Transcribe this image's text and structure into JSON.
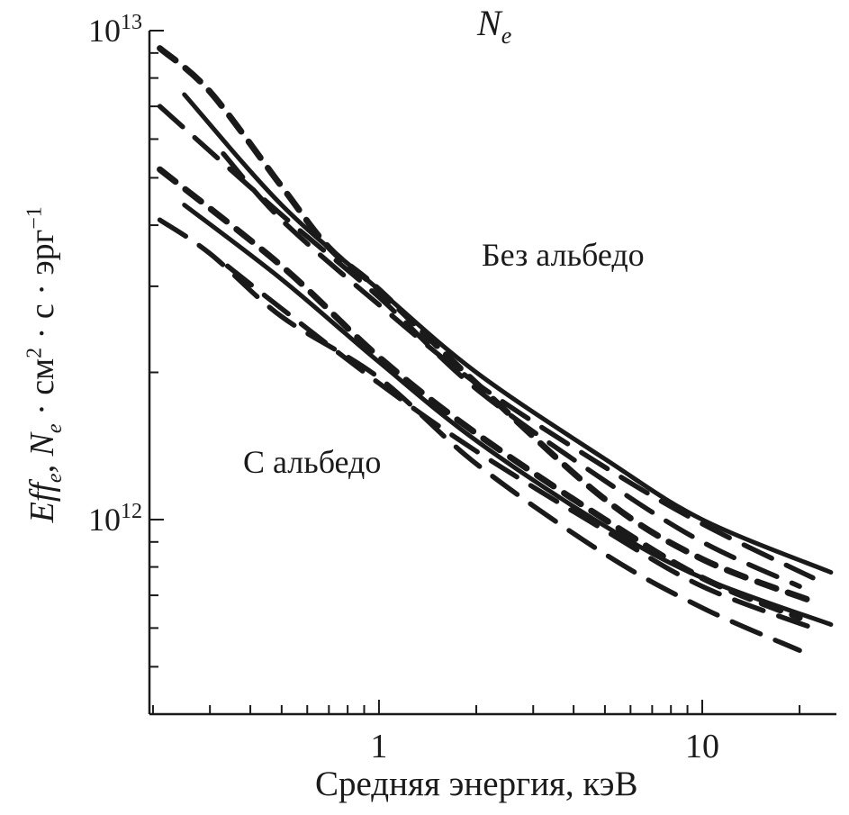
{
  "chart_data": {
    "type": "line",
    "title": "N_e",
    "xlabel": "Средняя энергия, кэВ",
    "ylabel": "Eff_e, N_e · см² · с · эрг⁻¹",
    "xscale": "log",
    "yscale": "log",
    "xlim": [
      0.195,
      26
    ],
    "ylim": [
      400000000000.0,
      10000000000000.0
    ],
    "grid": false,
    "x_tick_labels": [
      {
        "value": 1,
        "label": "1"
      },
      {
        "value": 10,
        "label": "10"
      }
    ],
    "y_tick_labels": [
      {
        "value": 10000000000000.0,
        "base": "10",
        "exp": "13"
      },
      {
        "value": 1000000000000.0,
        "base": "10",
        "exp": "12"
      }
    ],
    "annotations": [
      {
        "text": "Без альбедо",
        "x": 2.1,
        "y": 3300000000000.0
      },
      {
        "text": "С альбедо",
        "x": 0.55,
        "y": 1400000000000.0
      }
    ],
    "series": [
      {
        "group": "Без альбедо",
        "style": "dashed",
        "x": [
          0.21,
          0.3,
          0.5,
          0.7,
          1,
          2,
          5,
          10,
          22
        ],
        "y": [
          9200000000000.0,
          7500000000000.0,
          4800000000000.0,
          3600000000000.0,
          2950000000000.0,
          1900000000000.0,
          1100000000000.0,
          830000000000.0,
          680000000000.0
        ]
      },
      {
        "group": "Без альбедо",
        "style": "solid",
        "x": [
          0.25,
          0.5,
          1,
          2,
          5,
          10,
          25
        ],
        "y": [
          7400000000000.0,
          4400000000000.0,
          2950000000000.0,
          2000000000000.0,
          1330000000000.0,
          1000000000000.0,
          780000000000.0
        ]
      },
      {
        "group": "Без альбедо",
        "style": "longdash",
        "x": [
          0.21,
          0.5,
          1,
          2,
          5,
          10,
          20
        ],
        "y": [
          7000000000000.0,
          4200000000000.0,
          2850000000000.0,
          1850000000000.0,
          1200000000000.0,
          900000000000.0,
          730000000000.0
        ]
      },
      {
        "group": "Без альбедо",
        "style": "longdash",
        "x": [
          0.33,
          0.5,
          1,
          2,
          5,
          10,
          22
        ],
        "y": [
          5600000000000.0,
          4100000000000.0,
          2750000000000.0,
          1900000000000.0,
          1280000000000.0,
          980000000000.0,
          760000000000.0
        ]
      },
      {
        "group": "С альбедо",
        "style": "dashed",
        "x": [
          0.21,
          0.5,
          1,
          2,
          5,
          10,
          20
        ],
        "y": [
          5200000000000.0,
          3300000000000.0,
          2150000000000.0,
          1500000000000.0,
          1000000000000.0,
          760000000000.0,
          630000000000.0
        ]
      },
      {
        "group": "С альбедо",
        "style": "solid",
        "x": [
          0.25,
          0.5,
          1,
          2,
          5,
          10,
          25
        ],
        "y": [
          4400000000000.0,
          3100000000000.0,
          2100000000000.0,
          1450000000000.0,
          970000000000.0,
          760000000000.0,
          610000000000.0
        ]
      },
      {
        "group": "С альбедо",
        "style": "longdash",
        "x": [
          0.21,
          0.3,
          0.5,
          1,
          2,
          5,
          10,
          20
        ],
        "y": [
          4100000000000.0,
          3500000000000.0,
          2600000000000.0,
          1950000000000.0,
          1300000000000.0,
          850000000000.0,
          660000000000.0,
          540000000000.0
        ]
      },
      {
        "group": "С альбедо",
        "style": "longdash",
        "x": [
          0.34,
          0.5,
          1,
          2,
          5,
          10,
          22
        ],
        "y": [
          3300000000000.0,
          2700000000000.0,
          1900000000000.0,
          1380000000000.0,
          950000000000.0,
          730000000000.0,
          600000000000.0
        ]
      }
    ]
  }
}
